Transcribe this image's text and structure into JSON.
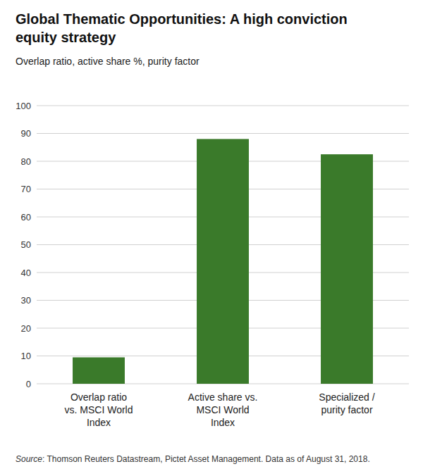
{
  "chart_data": {
    "type": "bar",
    "title": "Global Thematic Opportunities: A high conviction\nequity strategy",
    "subtitle": "Overlap ratio, active share %, purity factor",
    "categories": [
      "Overlap ratio\nvs. MSCI World\nIndex",
      "Active share vs.\nMSCI World\nIndex",
      "Specialized /\npurity factor"
    ],
    "values": [
      9.5,
      88.0,
      82.5
    ],
    "color": "#3a7a2a",
    "ylim": [
      0,
      100
    ],
    "yticks": [
      0,
      10,
      20,
      30,
      40,
      50,
      60,
      70,
      80,
      90,
      100
    ],
    "grid": true,
    "annotations": [
      "Source: Thomson Reuters Datastream, Pictet Asset Management. Data as of August 31, 2018."
    ]
  }
}
